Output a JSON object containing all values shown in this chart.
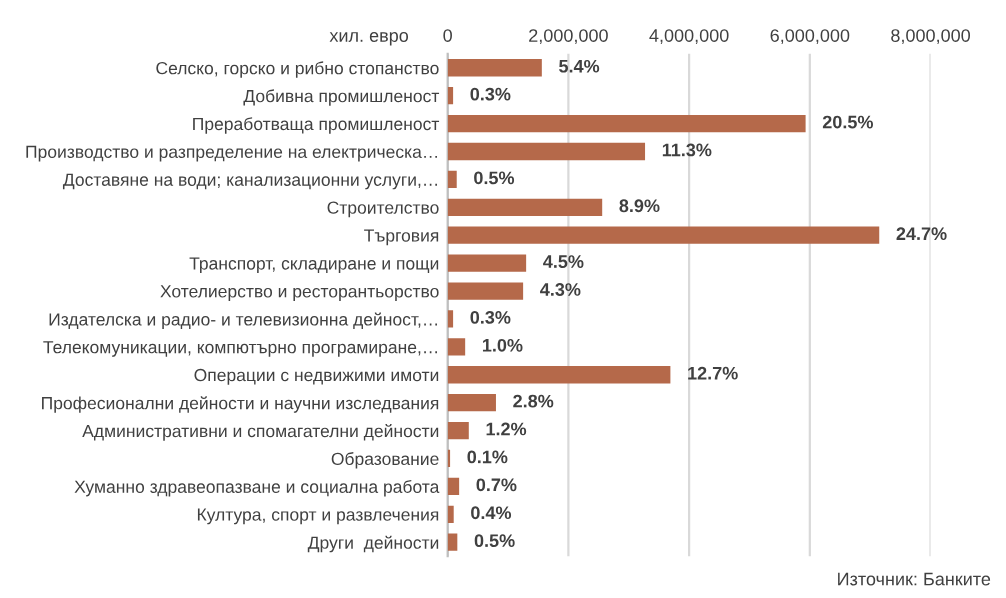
{
  "chart_data": {
    "type": "bar",
    "orientation": "horizontal",
    "xlabel": "хил. евро",
    "categories": [
      "Селско, горско и рибно стопанство",
      "Добивна промишленост",
      "Преработваща промишленост",
      "Производство и разпределение на електрическа…",
      "Доставяне на води; канализационни услуги,…",
      "Строителство",
      "Търговия",
      "Транспорт, складиране и пощи",
      "Хотелиерство и ресторантьорство",
      "Издателска и радио- и телевизионна дейност,…",
      "Телекомуникации, компютърно програмиране,…",
      "Операции с недвижими имоти",
      "Професионални дейности и научни изследвания",
      "Административни и спомагателни дейности",
      "Образование",
      "Хуманно здравеопазване и социална работа",
      "Култура, спорт и развлечения",
      "Други  дейности"
    ],
    "values": [
      1560000,
      90000,
      5930000,
      3270000,
      150000,
      2560000,
      7150000,
      1300000,
      1250000,
      90000,
      290000,
      3690000,
      800000,
      350000,
      40000,
      190000,
      100000,
      160000
    ],
    "color": "#b5694a",
    "xlim": [
      0,
      8000000
    ],
    "xticks": [
      0,
      {
        "value": 2000000,
        "label": "2,000,000"
      },
      {
        "value": 4000000,
        "label": "4,000,000"
      },
      {
        "value": 6000000,
        "label": "6,000,000"
      },
      {
        "value": 8000000,
        "label": "8,000,000"
      }
    ],
    "grid": "x",
    "annotations": [
      {
        "text": "5.4%",
        "x": 1560000,
        "y": "Селско, горско и рибно стопанство"
      },
      {
        "text": "0.3%",
        "x": 90000,
        "y": "Добивна промишленост"
      },
      {
        "text": "20.5%",
        "x": 5930000,
        "y": "Преработваща промишленост"
      },
      {
        "text": "11.3%",
        "x": 3270000,
        "y": "Производство и разпределение на електрическа…"
      },
      {
        "text": "0.5%",
        "x": 150000,
        "y": "Доставяне на води; канализационни услуги,…"
      },
      {
        "text": "8.9%",
        "x": 2560000,
        "y": "Строителство"
      },
      {
        "text": "24.7%",
        "x": 7150000,
        "y": "Търговия"
      },
      {
        "text": "4.5%",
        "x": 1300000,
        "y": "Транспорт, складиране и пощи"
      },
      {
        "text": "4.3%",
        "x": 1250000,
        "y": "Хотелиерство и ресторантьорство"
      },
      {
        "text": "0.3%",
        "x": 90000,
        "y": "Издателска и радио- и телевизионна дейност,…"
      },
      {
        "text": "1.0%",
        "x": 290000,
        "y": "Телекомуникации, компютърно програмиране,…"
      },
      {
        "text": "12.7%",
        "x": 3690000,
        "y": "Операции с недвижими имоти"
      },
      {
        "text": "2.8%",
        "x": 800000,
        "y": "Професионални дейности и научни изследвания"
      },
      {
        "text": "1.2%",
        "x": 350000,
        "y": "Административни и спомагателни дейности"
      },
      {
        "text": "0.1%",
        "x": 40000,
        "y": "Образование"
      },
      {
        "text": "0.7%",
        "x": 190000,
        "y": "Хуманно здравеопазване и социална работа"
      },
      {
        "text": "0.4%",
        "x": 100000,
        "y": "Култура, спорт и развлечения"
      },
      {
        "text": "0.5%",
        "x": 160000,
        "y": "Други  дейности"
      },
      "Източник: Банките"
    ]
  }
}
